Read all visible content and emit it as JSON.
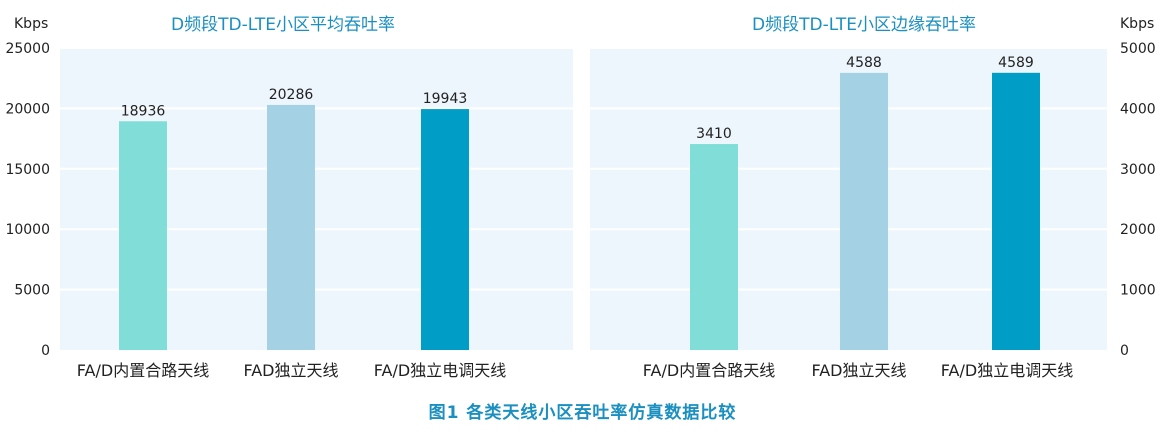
{
  "figure_caption": "图1  各类天线小区吞吐率仿真数据比较",
  "colors": {
    "title": "#1a8fc0",
    "caption": "#1a8fc0",
    "plot_bg": "#edf6fc",
    "grid": "#ffffff",
    "axis_text": "#222222"
  },
  "chart_data": [
    {
      "type": "bar",
      "title": "D频段TD-LTE小区平均吞吐率",
      "unit_label": "Kbps",
      "y_axis_side": "left",
      "ylim": [
        0,
        25000
      ],
      "yticks": [
        0,
        5000,
        10000,
        15000,
        20000,
        25000
      ],
      "grid": true,
      "categories": [
        "FA/D内置合路天线",
        "FAD独立天线",
        "FA/D独立电调天线"
      ],
      "values": [
        18936,
        20286,
        19943
      ],
      "data_labels": [
        "18936",
        "20286",
        "19943"
      ],
      "bar_colors": [
        "#80ddd8",
        "#a4d1e4",
        "#009ec6"
      ]
    },
    {
      "type": "bar",
      "title": "D频段TD-LTE小区边缘吞吐率",
      "unit_label": "Kbps",
      "y_axis_side": "right",
      "ylim": [
        0,
        5000
      ],
      "yticks": [
        0,
        1000,
        2000,
        3000,
        4000,
        5000
      ],
      "grid": true,
      "categories": [
        "FA/D内置合路天线",
        "FAD独立天线",
        "FA/D独立电调天线"
      ],
      "values": [
        3410,
        4588,
        4589
      ],
      "data_labels": [
        "3410",
        "4588",
        "4589"
      ],
      "bar_colors": [
        "#80ddd8",
        "#a4d1e4",
        "#009ec6"
      ]
    }
  ]
}
